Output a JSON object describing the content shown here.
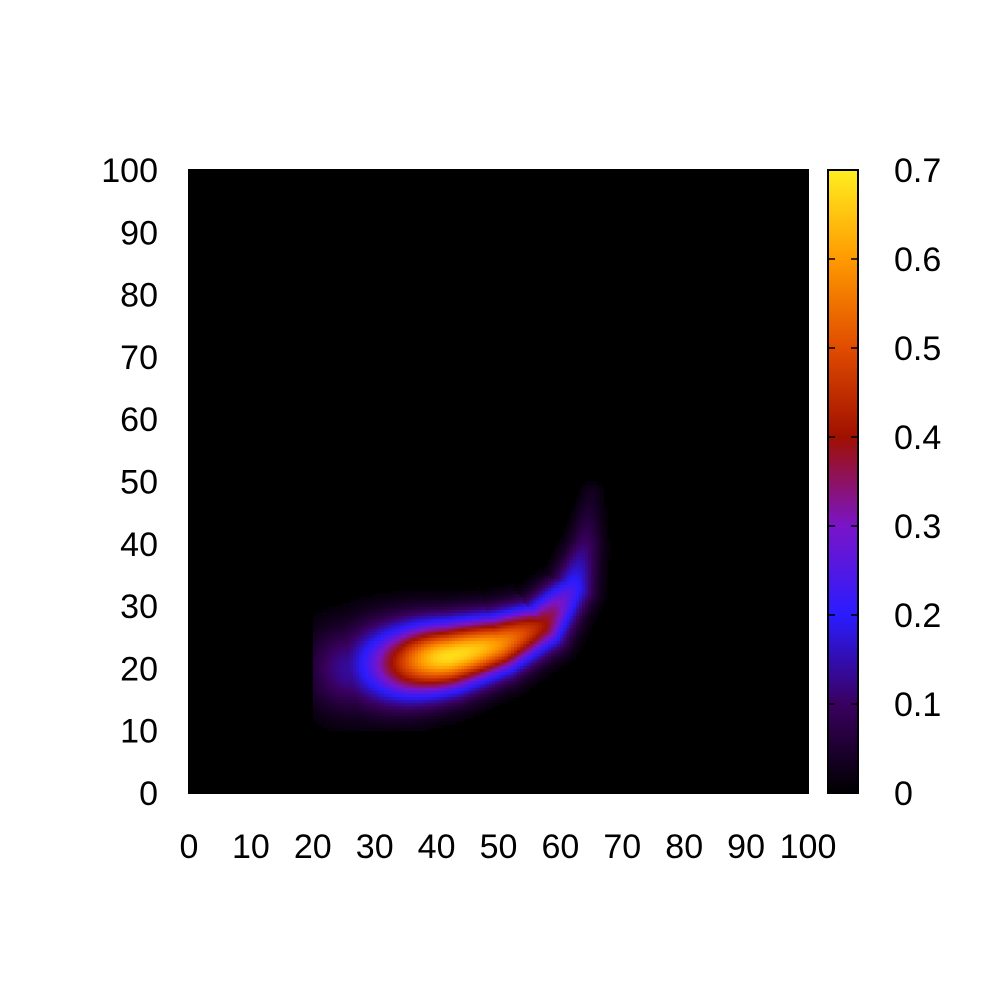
{
  "chart_data": {
    "type": "heatmap",
    "title": "",
    "xlabel": "",
    "ylabel": "",
    "xlim": [
      0,
      100
    ],
    "ylim": [
      0,
      100
    ],
    "x_ticks": [
      "0",
      "10",
      "20",
      "30",
      "40",
      "50",
      "60",
      "70",
      "80",
      "90",
      "100"
    ],
    "y_ticks": [
      "0",
      "10",
      "20",
      "30",
      "40",
      "50",
      "60",
      "70",
      "80",
      "90",
      "100"
    ],
    "colorbar": {
      "range": [
        0,
        0.7
      ],
      "ticks": [
        "0",
        "0.1",
        "0.2",
        "0.3",
        "0.4",
        "0.5",
        "0.6",
        "0.7"
      ],
      "colormap": [
        "#000000",
        "#3a0060",
        "#2a1cff",
        "#7a14c8",
        "#a01000",
        "#e04c00",
        "#ff9a00",
        "#ffee20"
      ]
    },
    "background_color": "#000000",
    "peak": {
      "x": 42,
      "y": 22,
      "value": 0.68
    },
    "ridge_path": [
      [
        26,
        20
      ],
      [
        30,
        20.5
      ],
      [
        35,
        21
      ],
      [
        42,
        22
      ],
      [
        50,
        24
      ],
      [
        57,
        27
      ],
      [
        62,
        33
      ],
      [
        64,
        40
      ],
      [
        65,
        48
      ]
    ]
  }
}
